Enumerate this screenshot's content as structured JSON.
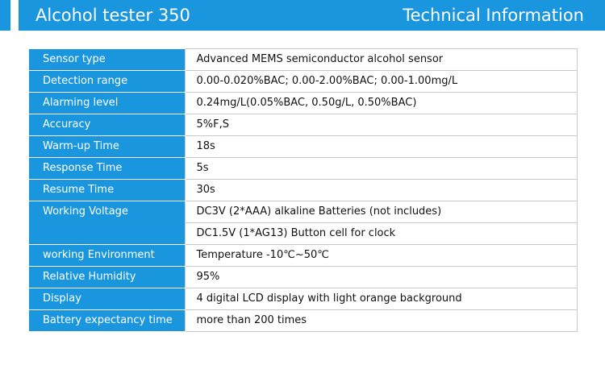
{
  "header": {
    "product_title": "Alcohol tester 350",
    "section_title": "Technical Information"
  },
  "specs": [
    {
      "label": "Sensor type",
      "values": [
        "Advanced MEMS semiconductor alcohol sensor"
      ]
    },
    {
      "label": "Detection range",
      "values": [
        "0.00-0.020%BAC; 0.00-2.00%BAC; 0.00-1.00mg/L"
      ]
    },
    {
      "label": "Alarming level",
      "values": [
        "0.24mg/L(0.05%BAC, 0.50g/L, 0.50%BAC)"
      ]
    },
    {
      "label": "Accuracy",
      "values": [
        "5%F,S"
      ]
    },
    {
      "label": "Warm-up Time",
      "values": [
        "18s"
      ]
    },
    {
      "label": "Response Time",
      "values": [
        "5s"
      ]
    },
    {
      "label": "Resume Time",
      "values": [
        "30s"
      ]
    },
    {
      "label": "Working Voltage",
      "values": [
        "DC3V (2*AAA) alkaline Batteries (not includes)",
        "DC1.5V (1*AG13) Button cell for clock"
      ]
    },
    {
      "label": "working Environment",
      "values": [
        "Temperature -10℃~50℃"
      ]
    },
    {
      "label": "Relative Humidity",
      "values": [
        "95%"
      ]
    },
    {
      "label": "Display",
      "values": [
        "4 digital LCD display with light orange background"
      ]
    },
    {
      "label": "Battery expectancy time",
      "values": [
        "more than 200 times"
      ]
    }
  ],
  "colors": {
    "accent": "#1a96df",
    "border": "#c9c9c9"
  }
}
